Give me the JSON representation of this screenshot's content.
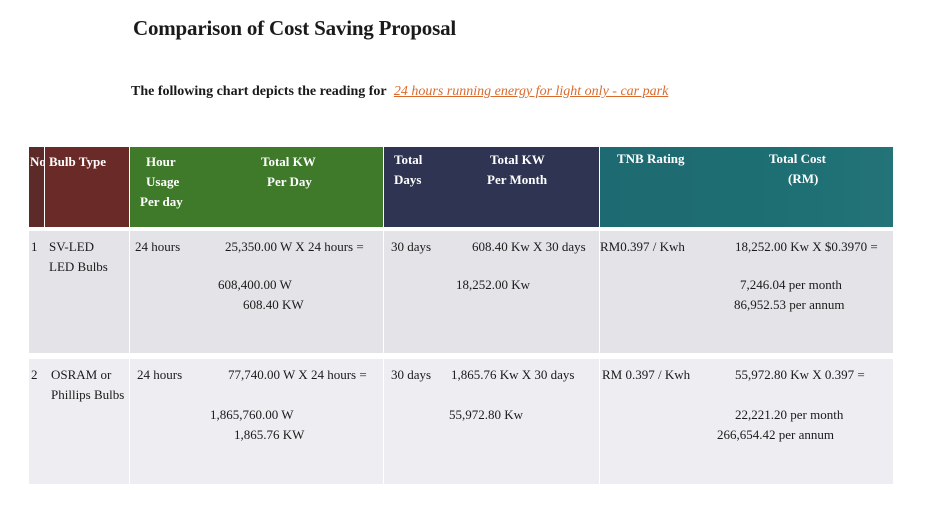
{
  "title": "Comparison of Cost Saving Proposal",
  "subtitle": {
    "lead": "The following chart depicts the reading for",
    "highlight": "24 hours running energy for light only  - car park"
  },
  "headers": {
    "no": "No",
    "bulb_type": "Bulb Type",
    "hour_usage": [
      "Hour",
      "Usage",
      "Per day"
    ],
    "total_kw_day": [
      "Total KW",
      "Per Day"
    ],
    "total_days": [
      "Total",
      "Days"
    ],
    "total_kw_month": [
      "Total KW",
      "Per Month"
    ],
    "tnb_rating": "TNB Rating",
    "total_cost": [
      "Total Cost",
      "(RM)"
    ]
  },
  "rows": [
    {
      "no": "1",
      "bulb": [
        "SV-LED",
        "LED Bulbs"
      ],
      "hours": "24  hours",
      "kw_day_formula": "25,350.00 W  X  24  hours =",
      "kw_day_result": [
        "608,400.00 W",
        "608.40 KW"
      ],
      "days": "30 days",
      "kw_month_formula": "608.40 Kw  X 30 days",
      "kw_month_result": "18,252.00 Kw",
      "rating": "RM0.397  / Kwh",
      "cost_formula": "18,252.00 Kw X $0.3970  =",
      "cost_result": [
        "7,246.04 per month",
        "86,952.53 per annum"
      ]
    },
    {
      "no": "2",
      "bulb": [
        "OSRAM or",
        "Phillips Bulbs"
      ],
      "hours": "24  hours",
      "kw_day_formula": "77,740.00 W  X  24  hours =",
      "kw_day_result": [
        "1,865,760.00 W",
        "1,865.76 KW"
      ],
      "days": "30 days",
      "kw_month_formula": "1,865.76   Kw  X 30 days",
      "kw_month_result": "55,972.80   Kw",
      "rating": "RM 0.397  / Kwh",
      "cost_formula": "55,972.80 Kw X   0.397   =",
      "cost_result": [
        "22,221.20 per month",
        "266,654.42 per annum"
      ]
    }
  ]
}
